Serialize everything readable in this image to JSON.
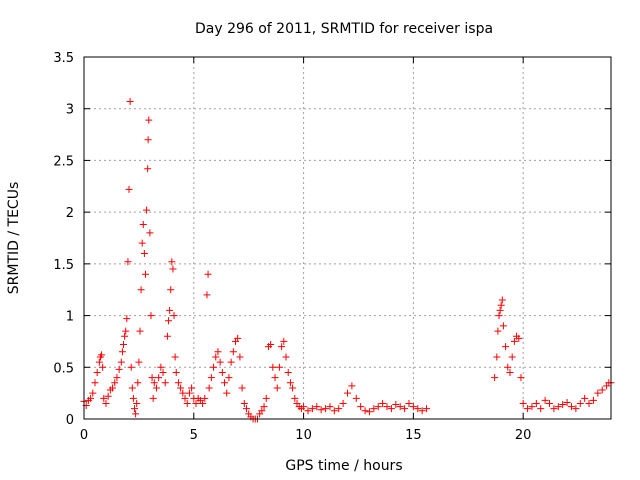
{
  "chart_data": {
    "type": "scatter",
    "title": "Day 296 of 2011, SRMTID for receiver ispa",
    "xlabel": "GPS time / hours",
    "ylabel": "SRMTID / TECUs",
    "xlim": [
      0,
      24
    ],
    "ylim": [
      0,
      3.5
    ],
    "xticks": [
      0,
      5,
      10,
      15,
      20
    ],
    "xtick_labels": [
      "0",
      "5",
      "10",
      "15",
      "20"
    ],
    "yticks": [
      0,
      0.5,
      1,
      1.5,
      2,
      2.5,
      3,
      3.5
    ],
    "ytick_labels": [
      "0",
      "0.5",
      "1",
      "1.5",
      "2",
      "2.5",
      "3",
      "3.5"
    ],
    "grid": true,
    "marker": "+",
    "series": [
      {
        "name": "SRMTID",
        "color": "#ff0000",
        "points": [
          [
            0.0,
            0.17
          ],
          [
            0.1,
            0.13
          ],
          [
            0.2,
            0.18
          ],
          [
            0.3,
            0.2
          ],
          [
            0.4,
            0.25
          ],
          [
            0.5,
            0.35
          ],
          [
            0.6,
            0.45
          ],
          [
            0.7,
            0.55
          ],
          [
            0.75,
            0.6
          ],
          [
            0.8,
            0.62
          ],
          [
            0.85,
            0.5
          ],
          [
            0.9,
            0.2
          ],
          [
            1.0,
            0.15
          ],
          [
            1.1,
            0.22
          ],
          [
            1.2,
            0.28
          ],
          [
            1.3,
            0.3
          ],
          [
            1.4,
            0.35
          ],
          [
            1.5,
            0.4
          ],
          [
            1.6,
            0.48
          ],
          [
            1.7,
            0.55
          ],
          [
            1.75,
            0.65
          ],
          [
            1.8,
            0.72
          ],
          [
            1.85,
            0.8
          ],
          [
            1.9,
            0.85
          ],
          [
            1.95,
            0.97
          ],
          [
            2.0,
            1.52
          ],
          [
            2.05,
            2.22
          ],
          [
            2.1,
            3.07
          ],
          [
            2.15,
            0.5
          ],
          [
            2.2,
            0.3
          ],
          [
            2.25,
            0.2
          ],
          [
            2.3,
            0.1
          ],
          [
            2.35,
            0.05
          ],
          [
            2.4,
            0.15
          ],
          [
            2.45,
            0.35
          ],
          [
            2.5,
            0.55
          ],
          [
            2.55,
            0.85
          ],
          [
            2.6,
            1.25
          ],
          [
            2.65,
            1.7
          ],
          [
            2.7,
            1.88
          ],
          [
            2.75,
            1.6
          ],
          [
            2.8,
            1.4
          ],
          [
            2.85,
            2.02
          ],
          [
            2.9,
            2.42
          ],
          [
            2.92,
            2.7
          ],
          [
            2.95,
            2.89
          ],
          [
            3.0,
            1.8
          ],
          [
            3.05,
            1.0
          ],
          [
            3.1,
            0.4
          ],
          [
            3.15,
            0.2
          ],
          [
            3.2,
            0.35
          ],
          [
            3.3,
            0.3
          ],
          [
            3.4,
            0.4
          ],
          [
            3.5,
            0.5
          ],
          [
            3.6,
            0.45
          ],
          [
            3.7,
            0.35
          ],
          [
            3.8,
            0.8
          ],
          [
            3.85,
            0.95
          ],
          [
            3.9,
            1.05
          ],
          [
            3.95,
            1.25
          ],
          [
            4.0,
            1.52
          ],
          [
            4.05,
            1.45
          ],
          [
            4.1,
            1.0
          ],
          [
            4.15,
            0.6
          ],
          [
            4.2,
            0.45
          ],
          [
            4.3,
            0.35
          ],
          [
            4.4,
            0.3
          ],
          [
            4.5,
            0.25
          ],
          [
            4.6,
            0.2
          ],
          [
            4.7,
            0.15
          ],
          [
            4.8,
            0.25
          ],
          [
            4.9,
            0.3
          ],
          [
            5.0,
            0.2
          ],
          [
            5.1,
            0.15
          ],
          [
            5.2,
            0.2
          ],
          [
            5.3,
            0.18
          ],
          [
            5.4,
            0.15
          ],
          [
            5.5,
            0.2
          ],
          [
            5.6,
            1.2
          ],
          [
            5.65,
            1.4
          ],
          [
            5.7,
            0.3
          ],
          [
            5.8,
            0.4
          ],
          [
            5.9,
            0.5
          ],
          [
            6.0,
            0.6
          ],
          [
            6.1,
            0.65
          ],
          [
            6.2,
            0.55
          ],
          [
            6.3,
            0.45
          ],
          [
            6.4,
            0.35
          ],
          [
            6.5,
            0.25
          ],
          [
            6.6,
            0.4
          ],
          [
            6.7,
            0.55
          ],
          [
            6.8,
            0.65
          ],
          [
            6.9,
            0.75
          ],
          [
            7.0,
            0.78
          ],
          [
            7.1,
            0.6
          ],
          [
            7.2,
            0.3
          ],
          [
            7.3,
            0.15
          ],
          [
            7.4,
            0.1
          ],
          [
            7.5,
            0.05
          ],
          [
            7.6,
            0.02
          ],
          [
            7.7,
            0.0
          ],
          [
            7.8,
            0.0
          ],
          [
            7.9,
            0.0
          ],
          [
            8.0,
            0.05
          ],
          [
            8.1,
            0.08
          ],
          [
            8.2,
            0.12
          ],
          [
            8.3,
            0.2
          ],
          [
            8.4,
            0.7
          ],
          [
            8.5,
            0.72
          ],
          [
            8.6,
            0.5
          ],
          [
            8.7,
            0.4
          ],
          [
            8.8,
            0.3
          ],
          [
            8.9,
            0.5
          ],
          [
            9.0,
            0.7
          ],
          [
            9.1,
            0.75
          ],
          [
            9.2,
            0.6
          ],
          [
            9.3,
            0.45
          ],
          [
            9.4,
            0.35
          ],
          [
            9.5,
            0.3
          ],
          [
            9.6,
            0.2
          ],
          [
            9.7,
            0.15
          ],
          [
            9.8,
            0.12
          ],
          [
            9.9,
            0.1
          ],
          [
            10.0,
            0.12
          ],
          [
            10.2,
            0.08
          ],
          [
            10.4,
            0.1
          ],
          [
            10.6,
            0.12
          ],
          [
            10.8,
            0.09
          ],
          [
            11.0,
            0.1
          ],
          [
            11.2,
            0.12
          ],
          [
            11.4,
            0.08
          ],
          [
            11.6,
            0.1
          ],
          [
            11.8,
            0.15
          ],
          [
            12.0,
            0.25
          ],
          [
            12.2,
            0.32
          ],
          [
            12.4,
            0.2
          ],
          [
            12.6,
            0.12
          ],
          [
            12.8,
            0.08
          ],
          [
            13.0,
            0.07
          ],
          [
            13.2,
            0.1
          ],
          [
            13.4,
            0.12
          ],
          [
            13.6,
            0.15
          ],
          [
            13.8,
            0.12
          ],
          [
            14.0,
            0.1
          ],
          [
            14.2,
            0.14
          ],
          [
            14.4,
            0.12
          ],
          [
            14.6,
            0.1
          ],
          [
            14.8,
            0.15
          ],
          [
            15.0,
            0.12
          ],
          [
            15.2,
            0.1
          ],
          [
            15.4,
            0.08
          ],
          [
            15.6,
            0.1
          ],
          [
            18.7,
            0.4
          ],
          [
            18.8,
            0.6
          ],
          [
            18.85,
            0.85
          ],
          [
            18.9,
            1.0
          ],
          [
            18.95,
            1.05
          ],
          [
            19.0,
            1.1
          ],
          [
            19.05,
            1.15
          ],
          [
            19.1,
            0.9
          ],
          [
            19.2,
            0.7
          ],
          [
            19.3,
            0.5
          ],
          [
            19.4,
            0.45
          ],
          [
            19.5,
            0.6
          ],
          [
            19.6,
            0.75
          ],
          [
            19.7,
            0.8
          ],
          [
            19.8,
            0.78
          ],
          [
            19.9,
            0.4
          ],
          [
            20.0,
            0.15
          ],
          [
            20.2,
            0.1
          ],
          [
            20.4,
            0.12
          ],
          [
            20.6,
            0.15
          ],
          [
            20.8,
            0.1
          ],
          [
            21.0,
            0.18
          ],
          [
            21.2,
            0.15
          ],
          [
            21.4,
            0.1
          ],
          [
            21.6,
            0.12
          ],
          [
            21.8,
            0.14
          ],
          [
            22.0,
            0.16
          ],
          [
            22.2,
            0.12
          ],
          [
            22.4,
            0.1
          ],
          [
            22.6,
            0.15
          ],
          [
            22.8,
            0.2
          ],
          [
            23.0,
            0.15
          ],
          [
            23.2,
            0.18
          ],
          [
            23.4,
            0.25
          ],
          [
            23.6,
            0.28
          ],
          [
            23.8,
            0.32
          ],
          [
            24.0,
            0.35
          ],
          [
            23.9,
            0.35
          ]
        ]
      }
    ]
  }
}
